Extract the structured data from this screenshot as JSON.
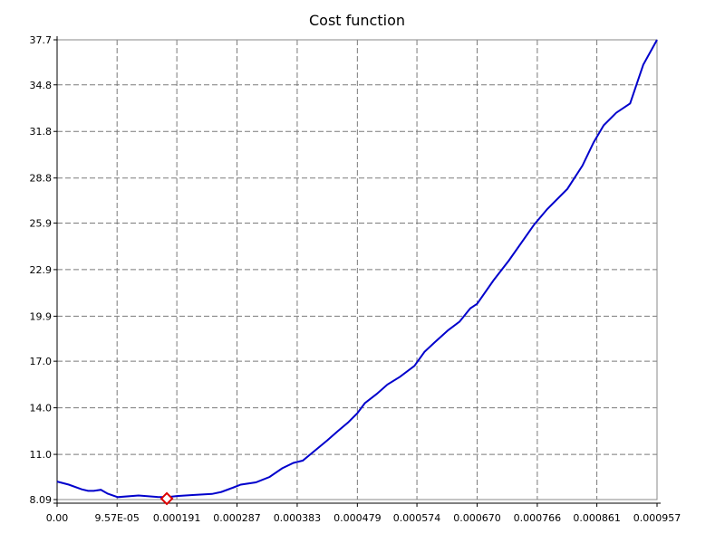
{
  "chart_data": {
    "type": "line",
    "title": "Cost function",
    "xlabel": "",
    "ylabel": "",
    "x_tick_labels": [
      "0.00",
      "9.57E-05",
      "0.000191",
      "0.000287",
      "0.000383",
      "0.000479",
      "0.000574",
      "0.000670",
      "0.000766",
      "0.000861",
      "0.000957"
    ],
    "y_tick_labels": [
      "8.09",
      "11.0",
      "14.0",
      "17.0",
      "19.9",
      "22.9",
      "25.9",
      "28.8",
      "31.8",
      "34.8",
      "37.7"
    ],
    "x_ticks": [
      0,
      9.57e-05,
      0.000191,
      0.000287,
      0.000383,
      0.000479,
      0.000574,
      0.00067,
      0.000766,
      0.000861,
      0.000957
    ],
    "y_ticks": [
      8.09,
      11.0,
      14.0,
      17.0,
      19.9,
      22.9,
      25.9,
      28.8,
      31.8,
      34.8,
      37.7
    ],
    "xlim": [
      0,
      0.000957
    ],
    "ylim": [
      8.09,
      37.7
    ],
    "grid": true,
    "series": [
      {
        "color": "#0000cc",
        "x": [
          0,
          1.87e-05,
          3.93e-05,
          4.95e-05,
          5.84e-05,
          6.98e-05,
          8.06e-05,
          9.67e-05,
          0.00013,
          0.00016,
          0.000175,
          0.000191,
          0.000216,
          0.000247,
          0.000262,
          0.00028,
          0.000293,
          0.000317,
          0.000339,
          0.000359,
          0.000377,
          0.000392,
          0.00041,
          0.000431,
          0.000448,
          0.000464,
          0.000479,
          0.000491,
          0.00051,
          0.000527,
          0.000547,
          0.00057,
          0.000586,
          0.000602,
          0.000624,
          0.000642,
          0.000659,
          0.00067,
          0.000696,
          0.000721,
          0.000761,
          0.000782,
          0.000814,
          0.000838,
          0.000856,
          0.000872,
          0.000892,
          0.000914,
          0.000935,
          0.000957
        ],
        "y": [
          9.25,
          9.05,
          8.75,
          8.65,
          8.65,
          8.72,
          8.47,
          8.25,
          8.35,
          8.26,
          8.24,
          8.32,
          8.38,
          8.45,
          8.58,
          8.85,
          9.05,
          9.2,
          9.55,
          10.1,
          10.45,
          10.6,
          11.2,
          11.9,
          12.5,
          13.05,
          13.65,
          14.3,
          14.9,
          15.5,
          16.0,
          16.7,
          17.6,
          18.2,
          19.0,
          19.55,
          20.4,
          20.7,
          22.2,
          23.5,
          25.8,
          26.8,
          28.1,
          29.6,
          31.1,
          32.2,
          33.0,
          33.6,
          36.1,
          37.7
        ]
      }
    ],
    "marker": {
      "x": 0.000175,
      "y": 8.15,
      "shape": "diamond",
      "color": "#dd0000"
    }
  }
}
